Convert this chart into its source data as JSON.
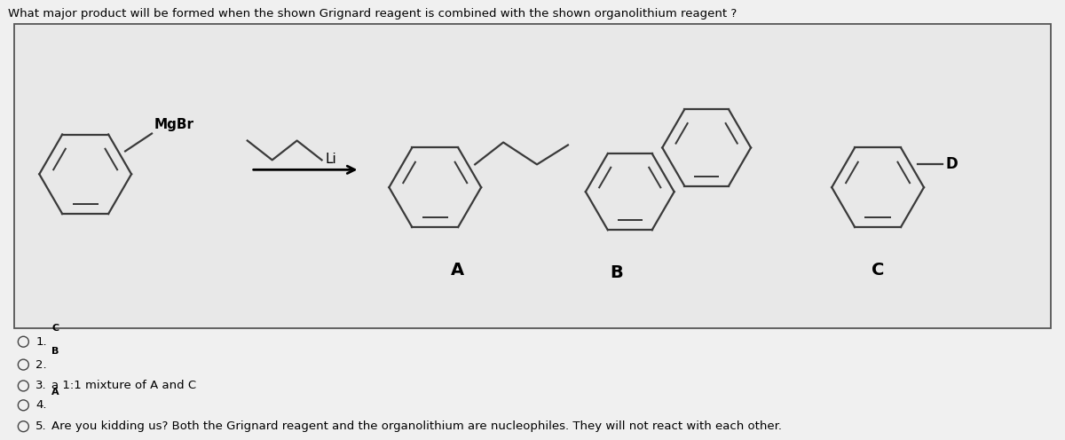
{
  "title": "What major product will be formed when the shown Grignard reagent is combined with the shown organolithium reagent ?",
  "title_fontsize": 9.5,
  "background_color": "#f0f0f0",
  "box_facecolor": "#e8e8e8",
  "box_edge_color": "#555555",
  "answer_options": [
    {
      "num": "1.",
      "sup": "C",
      "text": ""
    },
    {
      "num": "2.",
      "sup": "B",
      "text": ""
    },
    {
      "num": "3.",
      "sup": "",
      "text": "a 1:1 mixture of A and C"
    },
    {
      "num": "4.",
      "sup": "A",
      "text": ""
    },
    {
      "num": "5.",
      "sup": "",
      "text": "Are you kidding us? Both the Grignard reagent and the organolithium are nucleophiles. They will not react with each other."
    }
  ]
}
